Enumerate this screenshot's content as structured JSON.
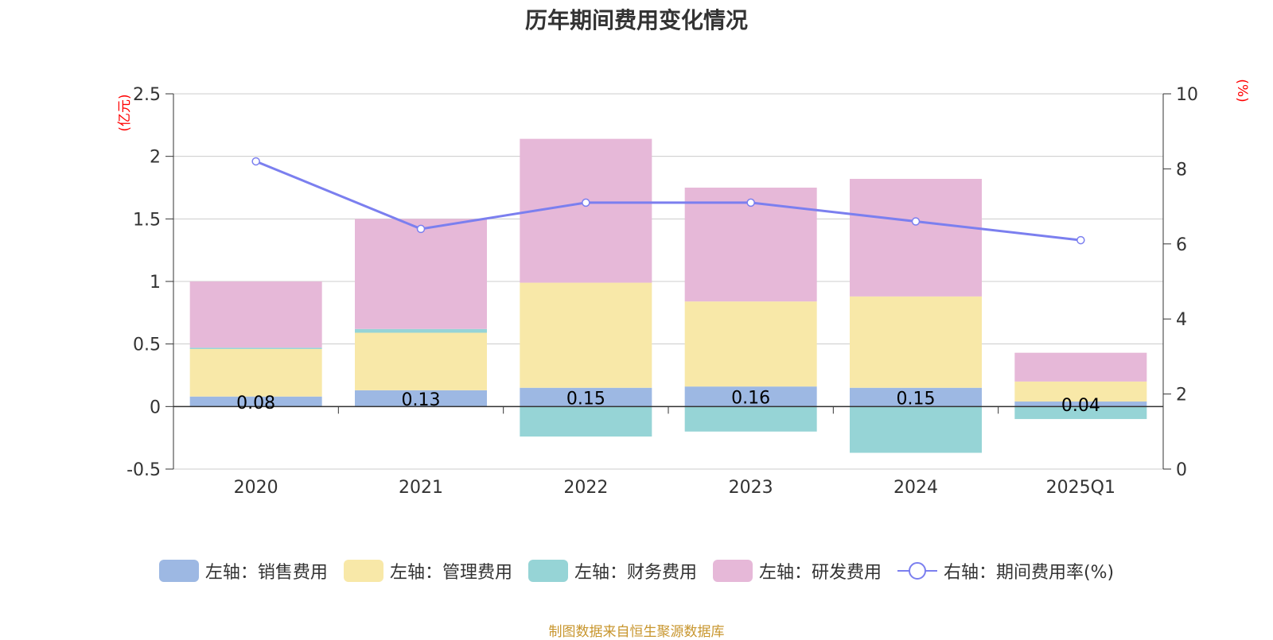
{
  "chart_data": {
    "type": "bar",
    "title": "历年期间费用变化情况",
    "categories": [
      "2020",
      "2021",
      "2022",
      "2023",
      "2024",
      "2025Q1"
    ],
    "left_axis": {
      "unit": "(亿元)",
      "min": -0.5,
      "max": 2.5,
      "ticks": [
        -0.5,
        0,
        0.5,
        1,
        1.5,
        2,
        2.5
      ],
      "tick_labels": [
        "-0.5",
        "0",
        "0.5",
        "1",
        "1.5",
        "2",
        "2.5"
      ]
    },
    "right_axis": {
      "unit": "(%)",
      "min": 0,
      "max": 10,
      "ticks": [
        0,
        2,
        4,
        6,
        8,
        10
      ],
      "tick_labels": [
        "0",
        "2",
        "4",
        "6",
        "8",
        "10"
      ]
    },
    "stacked": true,
    "series": [
      {
        "name": "左轴：销售费用",
        "axis": "left",
        "color": "#9db8e3",
        "values": [
          0.08,
          0.13,
          0.15,
          0.16,
          0.15,
          0.04
        ],
        "labels": [
          "0.08",
          "0.13",
          "0.15",
          "0.16",
          "0.15",
          "0.04"
        ]
      },
      {
        "name": "左轴：管理费用",
        "axis": "left",
        "color": "#f8e8a8",
        "values": [
          0.38,
          0.46,
          0.84,
          0.68,
          0.73,
          0.16
        ]
      },
      {
        "name": "左轴：财务费用",
        "axis": "left",
        "color": "#96d4d6",
        "values": [
          0.01,
          0.03,
          -0.24,
          -0.2,
          -0.37,
          -0.1
        ]
      },
      {
        "name": "左轴：研发费用",
        "axis": "left",
        "color": "#e6b8d8",
        "values": [
          0.53,
          0.88,
          1.15,
          0.91,
          0.94,
          0.23
        ]
      },
      {
        "name": "右轴：期间费用率(%)",
        "axis": "right",
        "type": "line",
        "color": "#7b7fef",
        "values": [
          8.2,
          6.4,
          7.1,
          7.1,
          6.6,
          6.1
        ]
      }
    ],
    "grid": true,
    "legend_position": "bottom"
  },
  "source_text": "制图数据来自恒生聚源数据库"
}
